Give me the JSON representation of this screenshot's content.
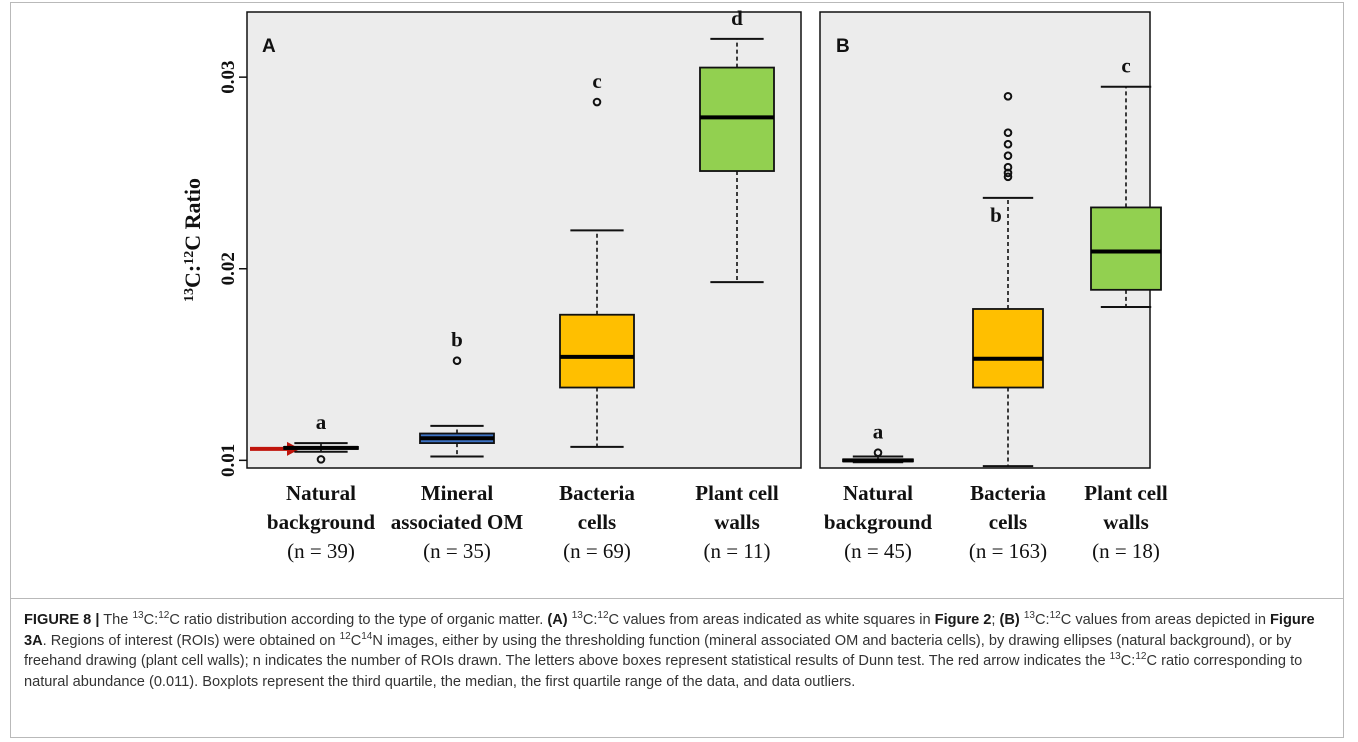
{
  "chart_data": [
    {
      "panel": "A",
      "type": "box",
      "ylabel": "13C:12C Ratio",
      "ylim": [
        0.0096,
        0.0334
      ],
      "yticks": [
        0.01,
        0.02,
        0.03
      ],
      "ytick_labels": [
        "0.01",
        "0.02",
        "0.03"
      ],
      "background": "#ececec",
      "grid": false,
      "reference_arrow": {
        "value": 0.0106,
        "color": "#c0140c"
      },
      "boxes": [
        {
          "label_lines": [
            "Natural",
            "background",
            "(n = 39)"
          ],
          "letter": "a",
          "color": "#2a3550",
          "whisker_low": 0.01045,
          "q1": 0.0106,
          "median": 0.01065,
          "q3": 0.0107,
          "whisker_high": 0.0109,
          "outliers": [
            0.01005
          ]
        },
        {
          "label_lines": [
            "Mineral",
            "associated OM",
            "(n = 35)"
          ],
          "letter": "b",
          "color": "#3d72c4",
          "whisker_low": 0.0102,
          "q1": 0.0109,
          "median": 0.01115,
          "q3": 0.0114,
          "whisker_high": 0.0118,
          "outliers": [
            0.0152
          ]
        },
        {
          "label_lines": [
            "Bacteria",
            "cells",
            "(n = 69)"
          ],
          "letter": "c",
          "color": "#ffbf00",
          "whisker_low": 0.0107,
          "q1": 0.0138,
          "median": 0.0154,
          "q3": 0.0176,
          "whisker_high": 0.022,
          "outliers": [
            0.0287
          ]
        },
        {
          "label_lines": [
            "Plant cell",
            "walls",
            "(n = 11)"
          ],
          "letter": "d",
          "color": "#92d050",
          "whisker_low": 0.0193,
          "q1": 0.0251,
          "median": 0.0279,
          "q3": 0.0305,
          "whisker_high": 0.032,
          "outliers": []
        }
      ]
    },
    {
      "panel": "B",
      "type": "box",
      "ylim": [
        0.0096,
        0.0334
      ],
      "background": "#ececec",
      "grid": false,
      "boxes": [
        {
          "label_lines": [
            "Natural",
            "background",
            "(n = 45)"
          ],
          "letter": "a",
          "color": "#2a3550",
          "whisker_low": 0.0099,
          "q1": 0.00995,
          "median": 0.01,
          "q3": 0.01005,
          "whisker_high": 0.0102,
          "outliers": [
            0.0104
          ]
        },
        {
          "label_lines": [
            "Bacteria",
            "cells",
            "(n = 163)"
          ],
          "letter": "b",
          "color": "#ffbf00",
          "whisker_low": 0.0097,
          "q1": 0.0138,
          "median": 0.0153,
          "q3": 0.0179,
          "whisker_high": 0.0237,
          "outliers": [
            0.0248,
            0.025,
            0.0253,
            0.0259,
            0.0265,
            0.0271,
            0.029
          ]
        },
        {
          "label_lines": [
            "Plant cell",
            "walls",
            "(n = 18)"
          ],
          "letter": "c",
          "color": "#92d050",
          "whisker_low": 0.018,
          "q1": 0.0189,
          "median": 0.0209,
          "q3": 0.0232,
          "whisker_high": 0.0295,
          "outliers": []
        }
      ]
    }
  ],
  "caption": {
    "label": "FIGURE 8 |",
    "intro_pre": "The",
    "intro_post": "ratio distribution according to the type of organic matter.",
    "part_a_label": "(A)",
    "part_a_pre": "values from areas indicated as white squares in",
    "figure2_ref": "Figure 2",
    "part_b_label": "(B)",
    "part_b_pre": "values from areas depicted in",
    "figure3a_ref": "Figure 3A",
    "rois_pre": ". Regions of interest (ROIs) were obtained on",
    "rois_post": "images, either by using the thresholding function (mineral associated OM and bacteria cells), by drawing ellipses (natural background), or by freehand drawing (plant cell walls); n indicates the number of ROIs drawn. The letters above boxes represent statistical results of Dunn test. The red arrow indicates the",
    "arrow_post": "ratio corresponding to natural abundance (0.011). Boxplots represent the third quartile, the median, the first quartile range of the data, and data outliers.",
    "ratio_c13": "13",
    "ratio_c13_base": "C:",
    "ratio_c12": "12",
    "ratio_c12_base": "C",
    "n_iso": "14",
    "n_base": "N"
  }
}
